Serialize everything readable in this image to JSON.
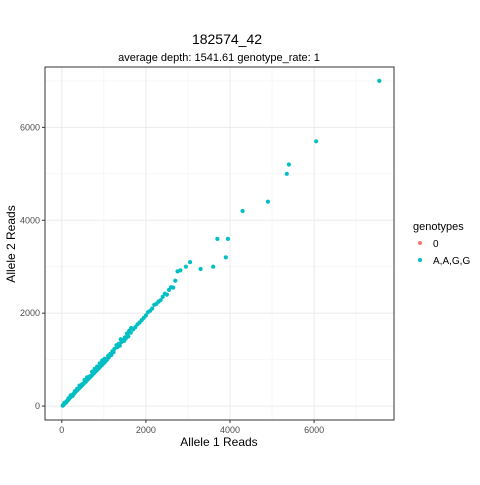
{
  "chart_data": {
    "type": "scatter",
    "title": "182574_42",
    "subtitle": "average depth:  1541.61  genotype_rate:  1",
    "xlabel": "Allele 1 Reads",
    "ylabel": "Allele 2 Reads",
    "xlim": [
      -400,
      7900
    ],
    "ylim": [
      -300,
      7300
    ],
    "xticks": [
      0,
      2000,
      4000,
      6000
    ],
    "yticks": [
      0,
      2000,
      4000,
      6000
    ],
    "xtick_labels": [
      "0",
      "2000",
      "4000",
      "6000"
    ],
    "ytick_labels": [
      "0",
      "2000",
      "4000",
      "6000"
    ],
    "grid": true,
    "legend": {
      "title": "genotypes",
      "position": "right",
      "entries": [
        {
          "label": "0",
          "color": "#f8766d"
        },
        {
          "label": "A,A,G,G",
          "color": "#00bfc4"
        }
      ]
    },
    "series": [
      {
        "name": "A,A,G,G",
        "color": "#00bfc4",
        "points": [
          [
            20,
            10
          ],
          [
            40,
            25
          ],
          [
            55,
            40
          ],
          [
            70,
            55
          ],
          [
            85,
            70
          ],
          [
            100,
            85
          ],
          [
            115,
            100
          ],
          [
            130,
            115
          ],
          [
            145,
            130
          ],
          [
            160,
            140
          ],
          [
            175,
            160
          ],
          [
            190,
            175
          ],
          [
            205,
            190
          ],
          [
            220,
            205
          ],
          [
            235,
            220
          ],
          [
            250,
            235
          ],
          [
            265,
            250
          ],
          [
            280,
            260
          ],
          [
            295,
            280
          ],
          [
            310,
            290
          ],
          [
            325,
            305
          ],
          [
            340,
            320
          ],
          [
            355,
            335
          ],
          [
            370,
            345
          ],
          [
            385,
            360
          ],
          [
            400,
            375
          ],
          [
            415,
            390
          ],
          [
            430,
            400
          ],
          [
            445,
            420
          ],
          [
            460,
            430
          ],
          [
            475,
            445
          ],
          [
            490,
            455
          ],
          [
            505,
            470
          ],
          [
            520,
            485
          ],
          [
            535,
            500
          ],
          [
            550,
            515
          ],
          [
            565,
            525
          ],
          [
            580,
            540
          ],
          [
            595,
            555
          ],
          [
            610,
            565
          ],
          [
            625,
            585
          ],
          [
            640,
            595
          ],
          [
            655,
            610
          ],
          [
            670,
            620
          ],
          [
            685,
            640
          ],
          [
            700,
            650
          ],
          [
            715,
            665
          ],
          [
            730,
            680
          ],
          [
            745,
            695
          ],
          [
            760,
            705
          ],
          [
            775,
            720
          ],
          [
            790,
            735
          ],
          [
            805,
            750
          ],
          [
            820,
            765
          ],
          [
            835,
            775
          ],
          [
            850,
            790
          ],
          [
            865,
            805
          ],
          [
            880,
            820
          ],
          [
            895,
            830
          ],
          [
            910,
            845
          ],
          [
            925,
            860
          ],
          [
            940,
            875
          ],
          [
            955,
            885
          ],
          [
            970,
            900
          ],
          [
            985,
            915
          ],
          [
            1000,
            930
          ],
          [
            1020,
            945
          ],
          [
            1040,
            965
          ],
          [
            1060,
            985
          ],
          [
            1080,
            1005
          ],
          [
            60,
            70
          ],
          [
            110,
            80
          ],
          [
            160,
            170
          ],
          [
            210,
            230
          ],
          [
            260,
            220
          ],
          [
            310,
            320
          ],
          [
            360,
            370
          ],
          [
            420,
            440
          ],
          [
            480,
            470
          ],
          [
            540,
            560
          ],
          [
            600,
            620
          ],
          [
            660,
            640
          ],
          [
            720,
            740
          ],
          [
            780,
            800
          ],
          [
            840,
            850
          ],
          [
            900,
            920
          ],
          [
            960,
            980
          ],
          [
            1020,
            1020
          ],
          [
            1100,
            1080
          ],
          [
            1150,
            1120
          ],
          [
            1200,
            1180
          ],
          [
            1250,
            1230
          ],
          [
            1300,
            1310
          ],
          [
            1350,
            1340
          ],
          [
            1400,
            1440
          ],
          [
            1450,
            1420
          ],
          [
            1500,
            1480
          ],
          [
            1550,
            1560
          ],
          [
            1600,
            1620
          ],
          [
            1650,
            1680
          ],
          [
            1120,
            1050
          ],
          [
            1180,
            1100
          ],
          [
            1230,
            1160
          ],
          [
            1320,
            1270
          ],
          [
            1380,
            1300
          ],
          [
            1420,
            1380
          ],
          [
            1480,
            1400
          ],
          [
            1520,
            1450
          ],
          [
            1580,
            1500
          ],
          [
            1640,
            1580
          ],
          [
            1700,
            1650
          ],
          [
            1750,
            1700
          ],
          [
            1800,
            1760
          ],
          [
            1850,
            1800
          ],
          [
            1900,
            1850
          ],
          [
            1950,
            1900
          ],
          [
            2000,
            1950
          ],
          [
            2050,
            2020
          ],
          [
            2100,
            2050
          ],
          [
            2150,
            2100
          ],
          [
            2200,
            2180
          ],
          [
            2250,
            2200
          ],
          [
            2300,
            2250
          ],
          [
            2350,
            2280
          ],
          [
            2400,
            2350
          ],
          [
            2450,
            2420
          ],
          [
            2500,
            2400
          ],
          [
            2550,
            2500
          ],
          [
            2600,
            2560
          ],
          [
            2650,
            2550
          ],
          [
            2700,
            2700
          ],
          [
            2750,
            2900
          ],
          [
            2820,
            2920
          ],
          [
            2950,
            3000
          ],
          [
            3050,
            3100
          ],
          [
            3300,
            2950
          ],
          [
            3600,
            3000
          ],
          [
            3700,
            3600
          ],
          [
            3900,
            3200
          ],
          [
            3950,
            3600
          ],
          [
            4300,
            4200
          ],
          [
            4900,
            4400
          ],
          [
            5350,
            5000
          ],
          [
            5400,
            5200
          ],
          [
            6050,
            5700
          ],
          [
            7550,
            7000
          ]
        ]
      }
    ]
  }
}
